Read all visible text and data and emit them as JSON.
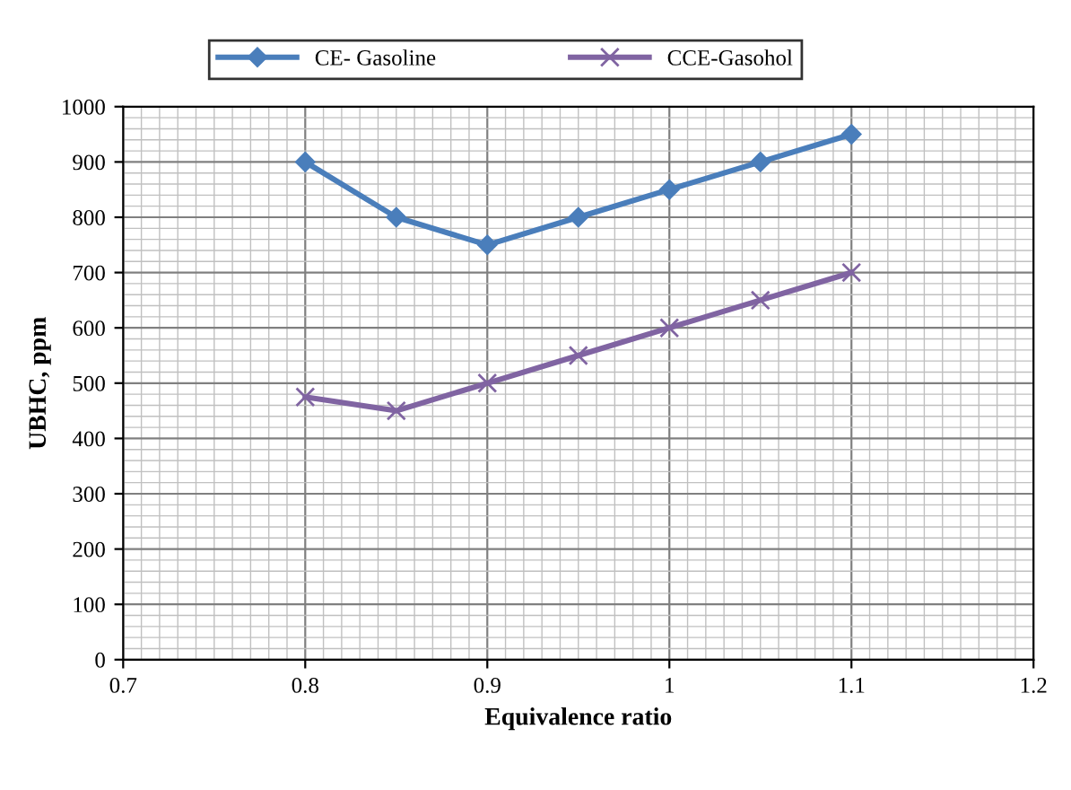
{
  "chart_data": {
    "type": "line",
    "xlabel": "Equivalence ratio",
    "ylabel": "UBHC, ppm",
    "x": [
      0.8,
      0.85,
      0.9,
      0.95,
      1.0,
      1.05,
      1.1
    ],
    "series": [
      {
        "name": "CE- Gasoline",
        "color": "#4a7ebb",
        "marker": "diamond",
        "values": [
          900,
          800,
          750,
          800,
          850,
          900,
          950
        ]
      },
      {
        "name": "CCE-Gasohol",
        "color": "#8064a2",
        "marker": "cross",
        "values": [
          475,
          450,
          500,
          550,
          600,
          650,
          700
        ]
      }
    ],
    "xlim": [
      0.7,
      1.2
    ],
    "xticks": [
      0.7,
      0.8,
      0.9,
      1,
      1.1,
      1.2
    ],
    "ylim": [
      0,
      1000
    ],
    "yticks": [
      0,
      100,
      200,
      300,
      400,
      500,
      600,
      700,
      800,
      900,
      1000
    ],
    "grid": true,
    "legend": "top",
    "line_style": "solid"
  }
}
